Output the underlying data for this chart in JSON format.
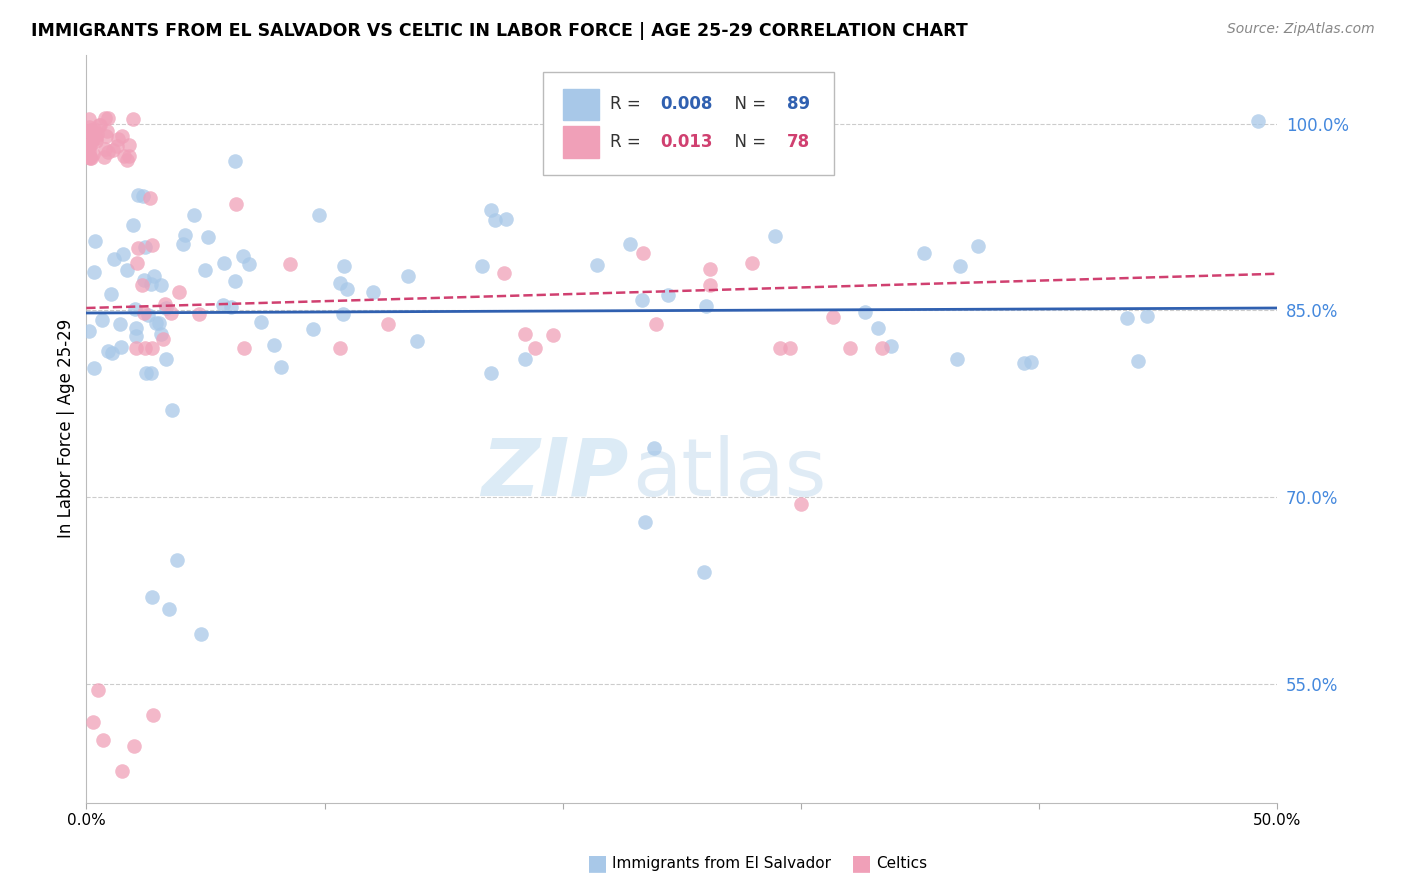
{
  "title": "IMMIGRANTS FROM EL SALVADOR VS CELTIC IN LABOR FORCE | AGE 25-29 CORRELATION CHART",
  "source": "Source: ZipAtlas.com",
  "ylabel": "In Labor Force | Age 25-29",
  "xmin": 0.0,
  "xmax": 0.5,
  "ymin": 0.455,
  "ymax": 1.055,
  "yticks": [
    0.55,
    0.7,
    0.85,
    1.0
  ],
  "ytick_labels": [
    "55.0%",
    "70.0%",
    "85.0%",
    "100.0%"
  ],
  "xticks": [
    0.0,
    0.1,
    0.2,
    0.3,
    0.4,
    0.5
  ],
  "xtick_labels": [
    "0.0%",
    "",
    "",
    "",
    "",
    "50.0%"
  ],
  "legend_r_blue": "0.008",
  "legend_n_blue": "89",
  "legend_r_pink": "0.013",
  "legend_n_pink": "78",
  "legend_label_blue": "Immigrants from El Salvador",
  "legend_label_pink": "Celtics",
  "blue_dot_color": "#a8c8e8",
  "pink_dot_color": "#f0a0b8",
  "blue_edge_color": "#80aad0",
  "pink_edge_color": "#e080a0",
  "trend_blue_color": "#3060b0",
  "trend_pink_color": "#d04070",
  "grid_color": "#cccccc",
  "right_tick_color": "#4488dd",
  "blue_intercept": 0.848,
  "blue_slope": 0.008,
  "pink_intercept": 0.852,
  "pink_slope": 0.055,
  "watermark_zip_color": "#c5dff0",
  "watermark_atlas_color": "#c0d8ec"
}
